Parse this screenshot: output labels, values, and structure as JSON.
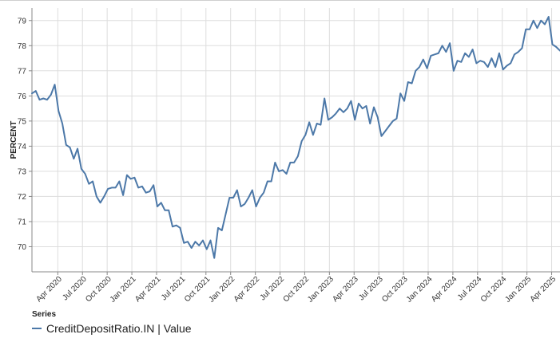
{
  "chart_data": {
    "type": "line",
    "ylabel": "PERCENT",
    "ylim": [
      69,
      79.5
    ],
    "yticks": [
      70,
      71,
      72,
      73,
      74,
      75,
      76,
      77,
      78,
      79
    ],
    "xticks": [
      "Apr 2020",
      "Jul 2020",
      "Oct 2020",
      "Jan 2021",
      "Apr 2021",
      "Jul 2021",
      "Oct 2021",
      "Jan 2022",
      "Apr 2022",
      "Jul 2022",
      "Oct 2022",
      "Jan 2023",
      "Apr 2023",
      "Jul 2023",
      "Oct 2023",
      "Jan 2024",
      "Apr 2024",
      "Jul 2024",
      "Oct 2024",
      "Jan 2025",
      "Apr 2025"
    ],
    "grid": true,
    "legend_title": "Series",
    "legend_position": "bottom-left",
    "series": [
      {
        "name": "CreditDepositRatio.IN | Value",
        "color": "#4c78a8",
        "values": [
          76.1,
          76.2,
          75.85,
          75.9,
          75.85,
          76.05,
          76.45,
          75.4,
          74.9,
          74.05,
          73.95,
          73.5,
          73.9,
          73.1,
          72.9,
          72.5,
          72.6,
          72.0,
          71.75,
          72.0,
          72.3,
          72.35,
          72.35,
          72.6,
          72.05,
          72.85,
          72.7,
          72.75,
          72.35,
          72.4,
          72.15,
          72.2,
          72.45,
          71.6,
          71.75,
          71.45,
          71.45,
          70.8,
          70.85,
          70.75,
          70.15,
          70.2,
          69.95,
          70.2,
          70.05,
          70.25,
          69.9,
          70.25,
          69.55,
          70.75,
          70.65,
          71.3,
          71.95,
          71.95,
          72.25,
          71.6,
          71.7,
          71.95,
          72.25,
          71.6,
          71.95,
          72.15,
          72.6,
          72.6,
          73.35,
          73.0,
          73.05,
          72.9,
          73.35,
          73.35,
          73.6,
          74.2,
          74.45,
          74.95,
          74.45,
          74.9,
          74.85,
          75.9,
          75.05,
          75.15,
          75.3,
          75.5,
          75.35,
          75.5,
          75.8,
          75.05,
          75.7,
          75.5,
          75.6,
          74.9,
          75.55,
          75.15,
          74.4,
          74.6,
          74.8,
          75.0,
          75.1,
          76.1,
          75.8,
          76.55,
          76.5,
          77.0,
          77.15,
          77.45,
          77.1,
          77.6,
          77.65,
          77.7,
          78.0,
          77.75,
          78.1,
          77.0,
          77.4,
          77.35,
          77.7,
          77.55,
          77.85,
          77.3,
          77.4,
          77.35,
          77.15,
          77.5,
          77.15,
          77.7,
          77.05,
          77.2,
          77.3,
          77.65,
          77.75,
          77.9,
          78.65,
          78.65,
          79.0,
          78.7,
          79.0,
          78.85,
          79.15,
          78.05,
          77.95,
          77.8
        ]
      }
    ]
  }
}
